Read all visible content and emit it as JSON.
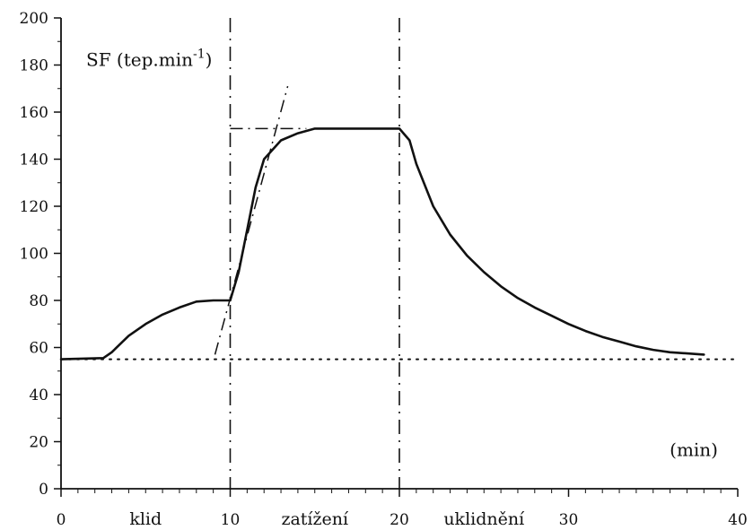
{
  "chart_data": {
    "type": "line",
    "title": "",
    "ylabel": "SF (tep.min",
    "ylabel_superscript": "-1",
    "ylabel_suffix": ")",
    "xlabel": "(min)",
    "xlim": [
      0,
      40
    ],
    "ylim": [
      0,
      200
    ],
    "x_ticks": [
      0,
      10,
      20,
      30,
      40
    ],
    "y_ticks": [
      0,
      20,
      40,
      60,
      80,
      100,
      120,
      140,
      160,
      180,
      200
    ],
    "phase_labels": [
      {
        "x": 5,
        "text": "klid"
      },
      {
        "x": 15,
        "text": "zatížení"
      },
      {
        "x": 25,
        "text": "uklidnění"
      }
    ],
    "phase_boundaries": [
      10,
      20
    ],
    "baseline_y": 55,
    "plateau_y": 153,
    "grid": false,
    "legend": "none",
    "series": [
      {
        "points": [
          [
            0,
            55
          ],
          [
            2.5,
            55.5
          ],
          [
            3,
            58
          ],
          [
            4,
            65
          ],
          [
            5,
            70
          ],
          [
            6,
            74
          ],
          [
            7,
            77
          ],
          [
            8,
            79.5
          ],
          [
            9,
            80
          ],
          [
            10,
            80
          ],
          [
            10.5,
            92
          ],
          [
            11,
            110
          ],
          [
            11.5,
            128
          ],
          [
            12,
            140
          ],
          [
            13,
            148
          ],
          [
            14,
            151
          ],
          [
            15,
            153
          ],
          [
            16,
            153
          ],
          [
            18,
            153
          ],
          [
            19,
            153
          ],
          [
            20,
            153
          ],
          [
            20.6,
            148
          ],
          [
            21,
            138
          ],
          [
            22,
            120
          ],
          [
            23,
            108
          ],
          [
            24,
            99
          ],
          [
            25,
            92
          ],
          [
            26,
            86
          ],
          [
            27,
            81
          ],
          [
            28,
            77
          ],
          [
            29,
            73.5
          ],
          [
            30,
            70
          ],
          [
            31,
            67
          ],
          [
            32,
            64.5
          ],
          [
            33,
            62.5
          ],
          [
            34,
            60.5
          ],
          [
            35,
            59
          ],
          [
            36,
            58
          ],
          [
            37,
            57.5
          ],
          [
            38,
            57
          ]
        ]
      }
    ],
    "tangent_lines": [
      {
        "x": [
          9.1,
          13.4
        ],
        "y": [
          57,
          171
        ]
      },
      {
        "x": [
          10,
          14.5
        ],
        "y": [
          153,
          153
        ]
      }
    ],
    "axis_color": "#111111",
    "line_color": "#111111"
  }
}
